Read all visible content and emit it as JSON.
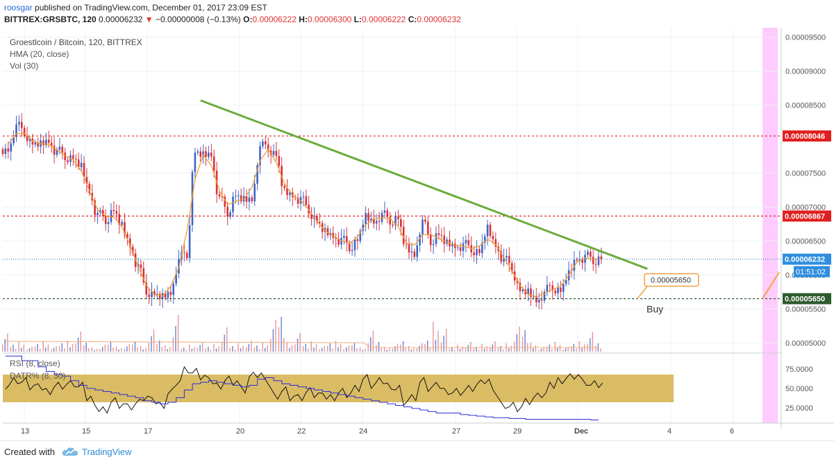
{
  "header": {
    "author": "roosgar",
    "published": "published on TradingView.com, December 01, 2017 23:09 EST",
    "symbol": "BITTREX:GRSBTC, 120",
    "last": "0.00006232",
    "change": "−0.00000008 (−0.13%)",
    "o_label": "O:",
    "o": "0.00006222",
    "h_label": "H:",
    "h": "0.00006300",
    "l_label": "L:",
    "l": "0.00006222",
    "c_label": "C:",
    "c": "0.00006232"
  },
  "legend": {
    "title": "Groestlcoin / Bitcoin, 120, BITTREX",
    "hma": "HMA (20, close)",
    "vol": "Vol (30)",
    "rsi": "RSI (8, close)",
    "datr": "DATR% (8, 30)"
  },
  "footer": {
    "created": "Created with",
    "brand": "TradingView"
  },
  "colors": {
    "up": "#3e63c8",
    "down": "#d8313a",
    "hma": "#f0a032",
    "trendline": "#6aab3c",
    "level_red": "#e02020",
    "level_green": "#2e5a2e",
    "rsi_band": "#d4b04a",
    "forecast_band": "#ffccff",
    "volume": "#e07a7a"
  },
  "chart_data": {
    "type": "candlestick",
    "x_tick_labels": [
      "13",
      "15",
      "17",
      "20",
      "22",
      "24",
      "27",
      "29",
      "Dec",
      "4",
      "6"
    ],
    "price_axis": {
      "ticks": [
        "0.00009500",
        "0.00009000",
        "0.00008500",
        "0.00007500",
        "0.00007000",
        "0.00006500",
        "0.00006000",
        "0.00005500",
        "0.00005000"
      ],
      "ylim": [
        4.87e-05,
        9.64e-05
      ]
    },
    "levels": [
      {
        "label": "0.00008046",
        "value": 8.046e-05,
        "color": "#e02020",
        "style": "dashed"
      },
      {
        "label": "0.00006867",
        "value": 6.867e-05,
        "color": "#e02020",
        "style": "dashed"
      },
      {
        "label": "0.00005650",
        "value": 5.65e-05,
        "color": "#2e5a2e",
        "style": "dashed"
      },
      {
        "label": "0.00006232",
        "value": 6.232e-05,
        "color": "#3a8ed6",
        "style": "dotted"
      }
    ],
    "countdown": "01:51:02",
    "trendline": {
      "start": {
        "t": 24,
        "price": 8.57e-05
      },
      "end": {
        "t": 79,
        "price": 6.09e-05
      }
    },
    "annotation": {
      "callout": "0.00005650",
      "text": "Buy"
    },
    "close_path": [
      [
        0,
        7.85e-05
      ],
      [
        1,
        8.18e-05
      ],
      [
        2,
        8.12e-05
      ],
      [
        3,
        7.92e-05
      ],
      [
        4,
        7.91e-05
      ],
      [
        5,
        7.98e-05
      ],
      [
        6,
        7.81e-05
      ],
      [
        7,
        7.76e-05
      ],
      [
        8,
        7.71e-05
      ],
      [
        9,
        7.58e-05
      ],
      [
        10,
        7.24e-05
      ],
      [
        11,
        6.88e-05
      ],
      [
        12,
        6.82e-05
      ],
      [
        13,
        6.94e-05
      ],
      [
        14,
        6.71e-05
      ],
      [
        15,
        6.45e-05
      ],
      [
        16,
        6.12e-05
      ],
      [
        17,
        5.78e-05
      ],
      [
        18,
        5.7e-05
      ],
      [
        19,
        5.66e-05
      ],
      [
        20,
        5.74e-05
      ],
      [
        21,
        6.2e-05
      ],
      [
        22,
        6.32e-05
      ],
      [
        23,
        7.8e-05
      ],
      [
        24,
        7.75e-05
      ],
      [
        25,
        7.78e-05
      ],
      [
        26,
        7.12e-05
      ],
      [
        27,
        6.93e-05
      ],
      [
        28,
        7.16e-05
      ],
      [
        29,
        7.09e-05
      ],
      [
        30,
        7.12e-05
      ],
      [
        31,
        7.86e-05
      ],
      [
        32,
        7.9e-05
      ],
      [
        33,
        7.75e-05
      ],
      [
        34,
        7.21e-05
      ],
      [
        35,
        7.18e-05
      ],
      [
        36,
        7.11e-05
      ],
      [
        37,
        6.97e-05
      ],
      [
        38,
        6.78e-05
      ],
      [
        39,
        6.62e-05
      ],
      [
        40,
        6.58e-05
      ],
      [
        41,
        6.51e-05
      ],
      [
        42,
        6.42e-05
      ],
      [
        43,
        6.5e-05
      ],
      [
        44,
        6.84e-05
      ],
      [
        45,
        6.79e-05
      ],
      [
        46,
        6.88e-05
      ],
      [
        47,
        6.81e-05
      ],
      [
        48,
        6.82e-05
      ],
      [
        49,
        6.38e-05
      ],
      [
        50,
        6.3e-05
      ],
      [
        51,
        6.78e-05
      ],
      [
        52,
        6.51e-05
      ],
      [
        53,
        6.59e-05
      ],
      [
        54,
        6.45e-05
      ],
      [
        55,
        6.43e-05
      ],
      [
        56,
        6.43e-05
      ],
      [
        57,
        6.4e-05
      ],
      [
        58,
        6.32e-05
      ],
      [
        59,
        6.67e-05
      ],
      [
        60,
        6.45e-05
      ],
      [
        61,
        6.22e-05
      ],
      [
        62,
        6.12e-05
      ],
      [
        63,
        5.76e-05
      ],
      [
        64,
        5.73e-05
      ],
      [
        65,
        5.63e-05
      ],
      [
        66,
        5.72e-05
      ],
      [
        67,
        5.84e-05
      ],
      [
        68,
        5.75e-05
      ],
      [
        69,
        6e-05
      ],
      [
        70,
        6.25e-05
      ],
      [
        71,
        6.26e-05
      ],
      [
        72,
        6.23e-05
      ],
      [
        73,
        6.23e-05
      ]
    ],
    "rsi": {
      "ticks": [
        "75.0000",
        "50.0000",
        "25.0000"
      ],
      "ylim": [
        5,
        95
      ],
      "band": [
        32,
        68
      ],
      "values": [
        55,
        60,
        58,
        52,
        50,
        48,
        54,
        55,
        56,
        52,
        38,
        22,
        24,
        34,
        30,
        26,
        30,
        38,
        32,
        30,
        45,
        60,
        74,
        70,
        65,
        58,
        55,
        62,
        60,
        48,
        65,
        68,
        55,
        42,
        48,
        40,
        38,
        45,
        42,
        38,
        40,
        46,
        44,
        50,
        62,
        54,
        58,
        55,
        50,
        34,
        38,
        58,
        50,
        52,
        48,
        46,
        47,
        50,
        55,
        60,
        42,
        30,
        28,
        26,
        33,
        38,
        42,
        52,
        62,
        65,
        68,
        58,
        54,
        55
      ]
    },
    "datr": {
      "values": [
        92,
        92,
        86,
        86,
        78,
        72,
        68,
        66,
        60,
        54,
        50,
        48,
        46,
        44,
        42,
        40,
        38,
        34,
        32,
        30,
        32,
        38,
        48,
        56,
        58,
        60,
        58,
        56,
        54,
        52,
        54,
        62,
        64,
        60,
        56,
        54,
        52,
        50,
        48,
        46,
        44,
        42,
        40,
        38,
        36,
        34,
        32,
        30,
        28,
        26,
        24,
        22,
        20,
        18,
        18,
        18,
        16,
        15,
        14,
        13,
        12,
        12,
        11,
        11,
        10,
        10,
        10,
        10,
        10,
        10,
        10,
        10,
        9,
        9
      ]
    }
  }
}
